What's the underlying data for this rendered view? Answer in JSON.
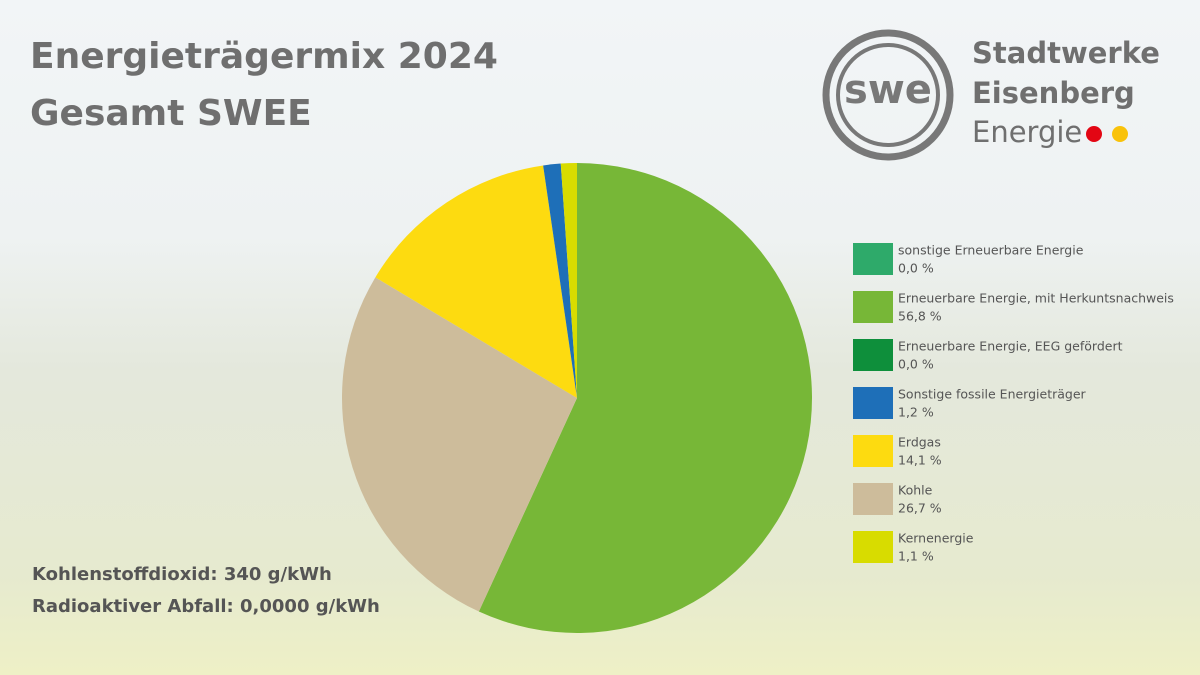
{
  "chart_data": {
    "type": "pie",
    "title": "Energieträgermix 2024",
    "subtitle": "Gesamt SWEE",
    "categories": [
      "sonstige Erneuerbare Energie",
      "Erneuerbare Energie, mit Herkuntsnachweis",
      "Erneuerbare Energie, EEG gefördert",
      "Sonstige fossile Energieträger",
      "Erdgas",
      "Kohle",
      "Kernenergie"
    ],
    "values": [
      0.0,
      56.8,
      0.0,
      1.2,
      14.1,
      26.7,
      1.1
    ],
    "value_labels": [
      "0,0 %",
      "56,8 %",
      "0,0 %",
      "1,2 %",
      "14,1 %",
      "26,7 %",
      "1,1 %"
    ],
    "colors": [
      "#2eaa6a",
      "#77b737",
      "#0e8f3b",
      "#1e6fb8",
      "#fddb10",
      "#cdbc9b",
      "#d8dc00"
    ],
    "annotations": [
      "Kohlenstoffdioxid: 340 g/kWh",
      "Radioaktiver Abfall: 0,0000 g/kWh"
    ]
  },
  "logo": {
    "mark": "swe",
    "line1": "Stadtwerke",
    "line2": "Eisenberg",
    "line3": "Energie"
  }
}
